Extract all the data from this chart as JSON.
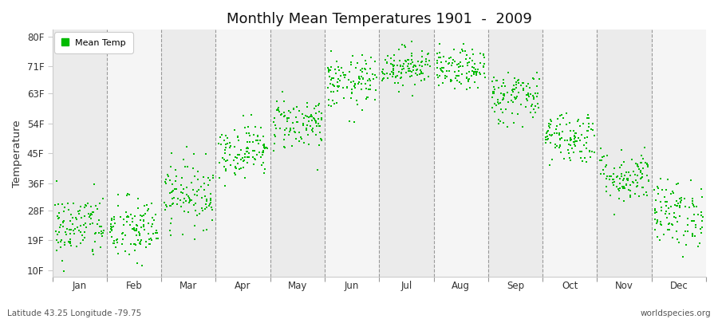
{
  "title": "Monthly Mean Temperatures 1901  -  2009",
  "ylabel": "Temperature",
  "bottom_left_text": "Latitude 43.25 Longitude -79.75",
  "bottom_right_text": "worldspecies.org",
  "legend_label": "Mean Temp",
  "fig_facecolor": "#ffffff",
  "plot_facecolor": "#ffffff",
  "band_colors": [
    "#ebebeb",
    "#f5f5f5"
  ],
  "marker_color": "#00bb00",
  "marker_size": 4,
  "ytick_values": [
    10,
    19,
    28,
    36,
    45,
    54,
    63,
    71,
    80
  ],
  "ytick_labels": [
    "10F",
    "19F",
    "28F",
    "36F",
    "45F",
    "54F",
    "63F",
    "71F",
    "80F"
  ],
  "ylim": [
    8,
    82
  ],
  "months": [
    "Jan",
    "Feb",
    "Mar",
    "Apr",
    "May",
    "Jun",
    "Jul",
    "Aug",
    "Sep",
    "Oct",
    "Nov",
    "Dec"
  ],
  "month_means": [
    23,
    22,
    33,
    46,
    54,
    66,
    71,
    70,
    62,
    50,
    38,
    27
  ],
  "month_stds": [
    5,
    5,
    5,
    4,
    4,
    4,
    3,
    3,
    4,
    4,
    4,
    5
  ],
  "n_years": 109
}
